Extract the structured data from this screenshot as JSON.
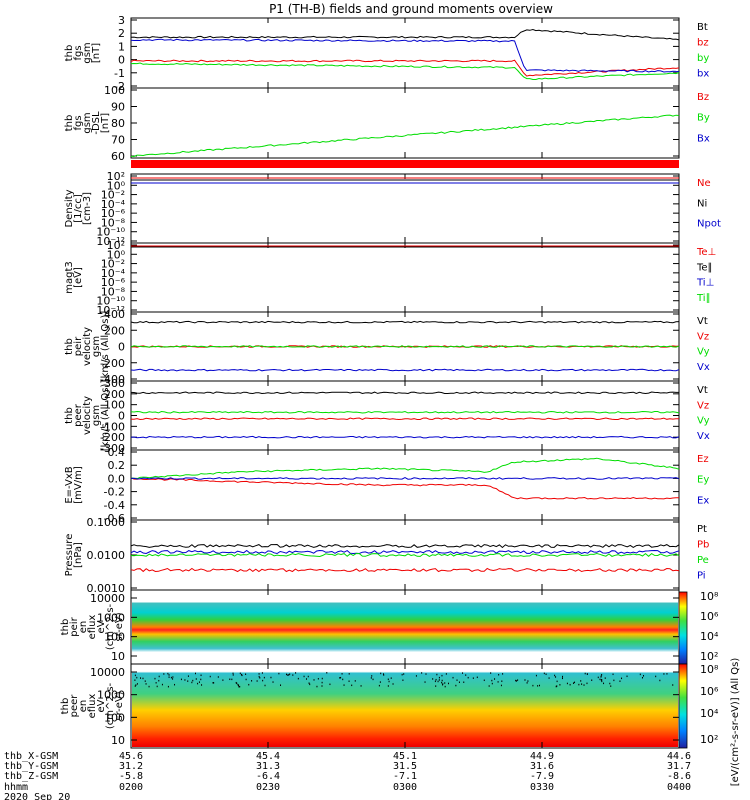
{
  "title": "P1 (TH-B) fields and ground moments overview",
  "colors": {
    "black": "#000000",
    "red": "#ee0000",
    "green": "#00dd00",
    "blue": "#0000cc"
  },
  "time_axis": {
    "labels": [
      "0200",
      "0230",
      "0300",
      "0330",
      "0400"
    ]
  },
  "footer": {
    "row_labels": [
      "thb_X-GSM",
      "thb_Y-GSM",
      "thb_Z-GSM",
      "hhmm",
      "2020 Sep 20"
    ],
    "x_gsm": [
      "45.6",
      "45.4",
      "45.1",
      "44.9",
      "44.6"
    ],
    "y_gsm": [
      "31.2",
      "31.3",
      "31.5",
      "31.6",
      "31.7"
    ],
    "z_gsm": [
      "-5.8",
      "-6.4",
      "-7.1",
      "-7.9",
      "-8.6"
    ],
    "hhmm": [
      "0200",
      "0230",
      "0300",
      "0330",
      "0400"
    ]
  },
  "colorbar": {
    "labels_top": [
      "10⁸",
      "10⁶",
      "10⁴",
      "10²"
    ],
    "labels_bottom": [
      "10⁸",
      "10⁶",
      "10⁴",
      "10²"
    ],
    "unit": "[eV/(cm²-s-sr-eV)] (All Qs)"
  },
  "chart_data": [
    {
      "type": "line",
      "name": "fgs_gsm",
      "ylabel": [
        "thb",
        "fgs",
        "gsm",
        "[nT]"
      ],
      "ylim": [
        -2,
        3
      ],
      "yticks": [
        "-2",
        "-1",
        "0",
        "1",
        "2",
        "3"
      ],
      "legend": [
        "Bt",
        "bz",
        "by",
        "bx"
      ],
      "series": [
        {
          "name": "Bt",
          "color": "black",
          "segments": [
            [
              0,
              1.7
            ],
            [
              0.7,
              1.7
            ],
            [
              0.72,
              2.3
            ],
            [
              1,
              1.5
            ]
          ]
        },
        {
          "name": "bz",
          "color": "red",
          "segments": [
            [
              0,
              -0.1
            ],
            [
              0.7,
              -0.1
            ],
            [
              0.72,
              -1.2
            ],
            [
              1,
              -0.6
            ]
          ]
        },
        {
          "name": "by",
          "color": "green",
          "segments": [
            [
              0,
              -0.3
            ],
            [
              0.7,
              -0.6
            ],
            [
              0.72,
              -1.5
            ],
            [
              1,
              -1.0
            ]
          ]
        },
        {
          "name": "bx",
          "color": "blue",
          "segments": [
            [
              0,
              1.5
            ],
            [
              0.7,
              1.4
            ],
            [
              0.72,
              -0.8
            ],
            [
              1,
              -0.9
            ]
          ]
        }
      ]
    },
    {
      "type": "line",
      "name": "fgs_gsm_dsl",
      "ylabel": [
        "thb",
        "fgs",
        "gsm",
        "-DSL",
        "[nT]"
      ],
      "ylim": [
        55,
        100
      ],
      "yticks": [
        "60",
        "70",
        "80",
        "90",
        "100"
      ],
      "legend": [
        "Bz",
        "By",
        "Bx"
      ],
      "series": [
        {
          "name": "By",
          "color": "green",
          "segments": [
            [
              0,
              55
            ],
            [
              1,
              83
            ]
          ]
        }
      ]
    },
    {
      "type": "line",
      "name": "density",
      "ylabel": [
        "Density",
        "[1/cc]",
        "[cm-3]"
      ],
      "yticks": [
        "10⁻¹²",
        "10⁻¹⁰",
        "10⁻⁸",
        "10⁻⁶",
        "10⁻⁴",
        "10⁻²",
        "10⁰",
        "10²"
      ],
      "legend": [
        "Ne",
        "Ni",
        "Npot"
      ]
    },
    {
      "type": "line",
      "name": "temperature",
      "ylabel": [
        "magt3",
        "[eV]"
      ],
      "yticks": [
        "10⁻¹²",
        "10⁻¹⁰",
        "10⁻⁸",
        "10⁻⁶",
        "10⁻⁴",
        "10⁻²",
        "10⁰",
        "10²"
      ],
      "legend": [
        "Te⊥",
        "Te∥",
        "Ti⊥",
        "Ti∥"
      ]
    },
    {
      "type": "line",
      "name": "peir_velocity",
      "ylabel": [
        "thb",
        "peir",
        "velocity",
        "gsm",
        "[km/s (All Qs)]"
      ],
      "ylim": [
        -400,
        400
      ],
      "yticks": [
        "-400",
        "-200",
        "0",
        "200",
        "400"
      ],
      "legend": [
        "Vt",
        "Vz",
        "Vy",
        "Vx"
      ],
      "series": [
        {
          "name": "Vt",
          "color": "black",
          "level": 300
        },
        {
          "name": "Vz",
          "color": "red",
          "level": 0
        },
        {
          "name": "Vy",
          "color": "green",
          "level": 0
        },
        {
          "name": "Vx",
          "color": "blue",
          "level": -290
        }
      ]
    },
    {
      "type": "line",
      "name": "peer_velocity",
      "ylabel": [
        "thb",
        "peer",
        "velocity",
        "gsm",
        "[km/s (All Qs)]"
      ],
      "ylim": [
        -300,
        300
      ],
      "yticks": [
        "-300",
        "-200",
        "-100",
        "0",
        "100",
        "200",
        "300"
      ],
      "legend": [
        "Vt",
        "Vz",
        "Vy",
        "Vx"
      ],
      "series": [
        {
          "name": "Vt",
          "color": "black",
          "level": 210
        },
        {
          "name": "Vz",
          "color": "red",
          "level": -30
        },
        {
          "name": "Vy",
          "color": "green",
          "level": 30
        },
        {
          "name": "Vx",
          "color": "blue",
          "level": -200
        }
      ]
    },
    {
      "type": "line",
      "name": "efield",
      "ylabel": [
        "E=-VxB",
        "[mV/m]"
      ],
      "ylim": [
        -0.6,
        0.4
      ],
      "yticks": [
        "-0.6",
        "-0.4",
        "-0.2",
        "0.0",
        "0.2",
        "0.4"
      ],
      "legend": [
        "Ez",
        "Ey",
        "Ex"
      ],
      "series": [
        {
          "name": "Ez",
          "color": "red",
          "segments": [
            [
              0,
              0.0
            ],
            [
              0.2,
              -0.05
            ],
            [
              0.45,
              -0.1
            ],
            [
              0.65,
              -0.1
            ],
            [
              0.7,
              -0.3
            ],
            [
              0.85,
              -0.3
            ],
            [
              1,
              -0.3
            ]
          ]
        },
        {
          "name": "Ey",
          "color": "green",
          "segments": [
            [
              0,
              0.0
            ],
            [
              0.2,
              0.1
            ],
            [
              0.45,
              0.15
            ],
            [
              0.65,
              0.1
            ],
            [
              0.7,
              0.25
            ],
            [
              0.85,
              0.3
            ],
            [
              1,
              0.15
            ]
          ]
        },
        {
          "name": "Ex",
          "color": "blue",
          "segments": [
            [
              0,
              0.0
            ],
            [
              1,
              0.0
            ]
          ]
        }
      ]
    },
    {
      "type": "line",
      "name": "pressure",
      "ylabel": [
        "Pressure",
        "[nPa]"
      ],
      "yticks": [
        "0.0010",
        "0.0100",
        "0.1000"
      ],
      "legend": [
        "Pt",
        "Pb",
        "Pe",
        "Pi"
      ]
    },
    {
      "type": "heatmap",
      "name": "peir_en_eflux",
      "ylabel": [
        "thb",
        "peir",
        "en",
        "eflux",
        "eV",
        "(cm^2-s-",
        "sr-eV)"
      ],
      "yticks": [
        "10",
        "100",
        "1000",
        "10000"
      ]
    },
    {
      "type": "heatmap",
      "name": "peer_en_eflux",
      "ylabel": [
        "thb",
        "peer",
        "en",
        "eflux",
        "eV",
        "(cm^2-s-",
        "sr-eV)"
      ],
      "yticks": [
        "10",
        "100",
        "1000",
        "10000"
      ]
    }
  ]
}
